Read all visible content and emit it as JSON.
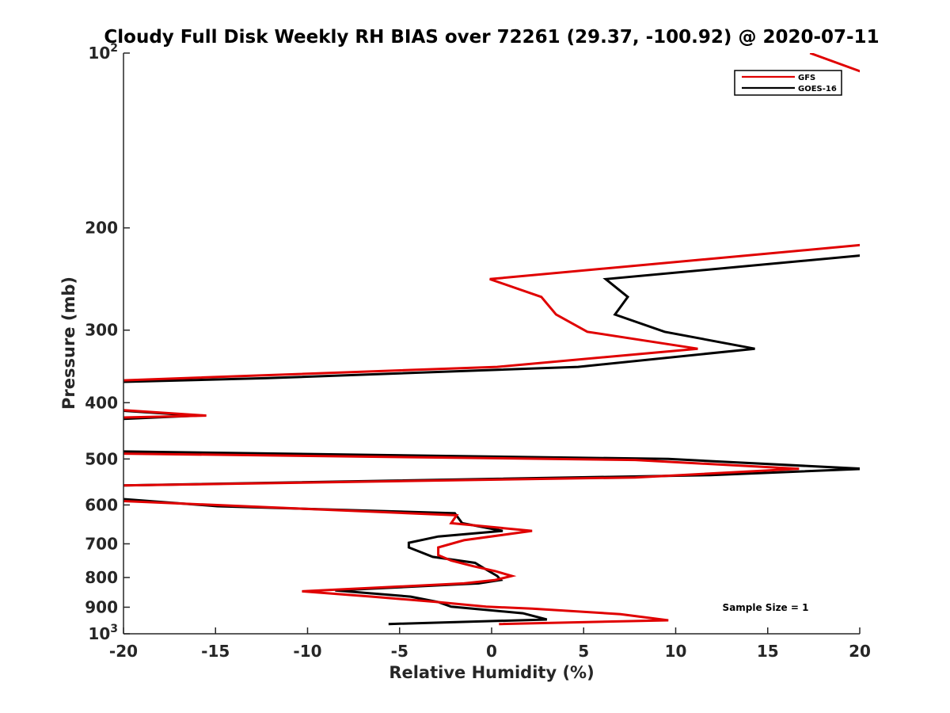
{
  "chart_data": {
    "type": "line",
    "title": "Cloudy Full Disk Weekly RH BIAS over 72261 (29.37, -100.92) @ 2020-07-11",
    "xlabel": "Relative Humidity (%)",
    "ylabel": "Pressure (mb)",
    "xlim": [
      -20,
      20
    ],
    "ylim": [
      100,
      1000
    ],
    "yscale": "log",
    "y_reversed": true,
    "x_ticks": [
      -20,
      -15,
      -10,
      -5,
      0,
      5,
      10,
      15,
      20
    ],
    "x_tick_labels": [
      "-20",
      "-15",
      "-10",
      "-5",
      "0",
      "5",
      "10",
      "15",
      "20"
    ],
    "y_ticks": [
      100,
      200,
      300,
      400,
      500,
      600,
      700,
      800,
      900,
      1000
    ],
    "y_tick_labels": [
      {
        "base": "10",
        "exp": "2"
      },
      {
        "base": "200",
        "exp": ""
      },
      {
        "base": "300",
        "exp": ""
      },
      {
        "base": "400",
        "exp": ""
      },
      {
        "base": "500",
        "exp": ""
      },
      {
        "base": "600",
        "exp": ""
      },
      {
        "base": "700",
        "exp": ""
      },
      {
        "base": "800",
        "exp": ""
      },
      {
        "base": "900",
        "exp": ""
      },
      {
        "base": "10",
        "exp": "3"
      }
    ],
    "legend_position": "top-right",
    "annotation": "Sample Size = 1",
    "series": [
      {
        "name": "GFS",
        "color": "#e00000",
        "points": [
          [
            17.3,
            100
          ],
          [
            20.2,
            108
          ],
          [
            20.8,
            213
          ],
          [
            -0.1,
            245
          ],
          [
            2.7,
            263
          ],
          [
            3.5,
            282
          ],
          [
            5.2,
            302
          ],
          [
            11.2,
            323
          ],
          [
            0.3,
            347
          ],
          [
            -21,
            367
          ],
          [
            -21,
            410
          ],
          [
            -15.5,
            421
          ],
          [
            -21,
            425
          ],
          [
            -21,
            489
          ],
          [
            7.8,
            502
          ],
          [
            16.7,
            520
          ],
          [
            7.8,
            538
          ],
          [
            -21,
            556
          ],
          [
            -21,
            589
          ],
          [
            -1.9,
            625
          ],
          [
            -2.2,
            645
          ],
          [
            2.2,
            665
          ],
          [
            -1.5,
            690
          ],
          [
            -2.9,
            710
          ],
          [
            -2.9,
            732
          ],
          [
            -2.2,
            748
          ],
          [
            -1.0,
            765
          ],
          [
            0.2,
            780
          ],
          [
            1.1,
            795
          ],
          [
            0.2,
            808
          ],
          [
            -1.5,
            819
          ],
          [
            -10.3,
            845
          ],
          [
            -6.5,
            863
          ],
          [
            -2.9,
            882
          ],
          [
            -0.3,
            898
          ],
          [
            2.2,
            905
          ],
          [
            7.0,
            925
          ],
          [
            9.6,
            948
          ],
          [
            0.4,
            962
          ]
        ]
      },
      {
        "name": "GOES-16",
        "color": "#000000",
        "points": [
          [
            20.8,
            222
          ],
          [
            6.2,
            245
          ],
          [
            7.4,
            263
          ],
          [
            6.7,
            282
          ],
          [
            9.4,
            302
          ],
          [
            14.3,
            323
          ],
          [
            4.7,
            347
          ],
          [
            -12.3,
            363
          ],
          [
            -21,
            369
          ],
          [
            -21,
            411
          ],
          [
            -16.0,
            421
          ],
          [
            -21,
            428
          ],
          [
            -21,
            485
          ],
          [
            9.6,
            500
          ],
          [
            20.2,
            520
          ],
          [
            11.9,
            533
          ],
          [
            -21,
            556
          ],
          [
            -21,
            583
          ],
          [
            -14.9,
            603
          ],
          [
            -2.0,
            620
          ],
          [
            -1.6,
            645
          ],
          [
            0.6,
            665
          ],
          [
            -2.9,
            680
          ],
          [
            -4.5,
            697
          ],
          [
            -4.5,
            710
          ],
          [
            -3.2,
            737
          ],
          [
            -0.9,
            755
          ],
          [
            -0.3,
            775
          ],
          [
            0.3,
            795
          ],
          [
            0.5,
            808
          ],
          [
            -0.7,
            819
          ],
          [
            -8.5,
            842
          ],
          [
            -4.4,
            863
          ],
          [
            -2.9,
            882
          ],
          [
            -2.2,
            898
          ],
          [
            1.7,
            922
          ],
          [
            3.0,
            945
          ],
          [
            -5.6,
            962
          ]
        ]
      }
    ]
  }
}
